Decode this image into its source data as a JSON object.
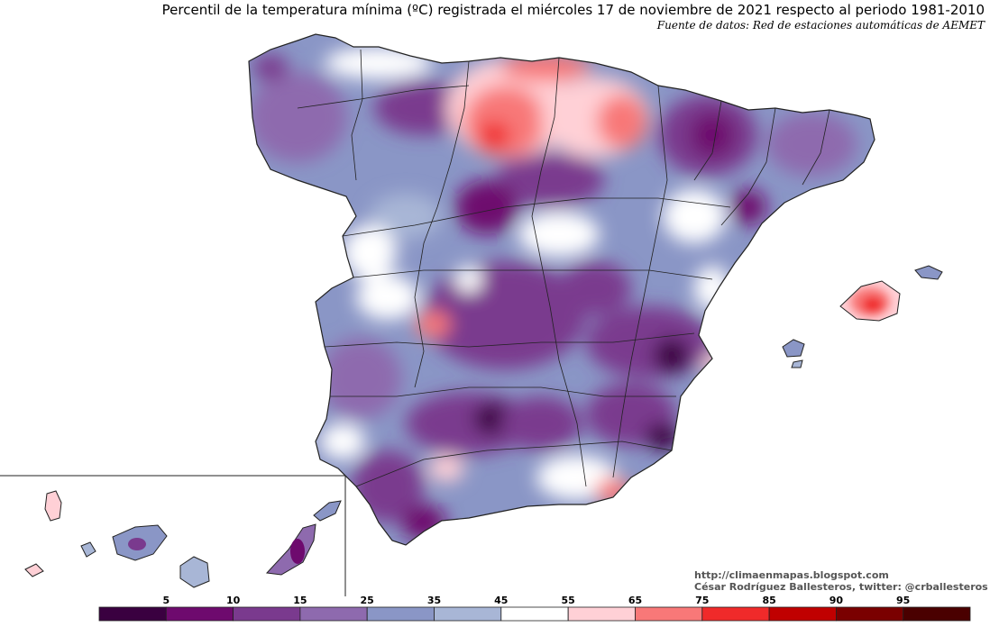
{
  "title": "Percentil de la temperatura mínima (ºC) registrada el miércoles 17 de noviembre de 2021 respecto al periodo 1981-2010",
  "source": "Fuente de datos: Red de estaciones automáticas de AEMET",
  "credits": {
    "blog": "http://climaenmapas.blogspot.com",
    "author": "César Rodríguez Ballesteros, twitter: @crballesteros"
  },
  "legend": {
    "labels": [
      "5",
      "10",
      "15",
      "25",
      "35",
      "45",
      "55",
      "65",
      "75",
      "85",
      "90",
      "95"
    ],
    "colors": [
      "#3a0040",
      "#6e0a6e",
      "#7a3a8e",
      "#8e6aae",
      "#8a96c6",
      "#a8b6d6",
      "#ffffff",
      "#ffd0d6",
      "#f87878",
      "#f02a2a",
      "#c00000",
      "#7a0000",
      "#4a0000"
    ]
  },
  "map_regions": [
    {
      "name": "region-galicia",
      "level": "low"
    },
    {
      "name": "region-north-ebro",
      "level": "high"
    },
    {
      "name": "region-aragon-cataluna",
      "level": "low"
    },
    {
      "name": "region-central-plateau",
      "level": "low"
    },
    {
      "name": "region-andalucia",
      "level": "low"
    },
    {
      "name": "region-valencia-coast",
      "level": "mid"
    },
    {
      "name": "region-baleares",
      "level": "high"
    },
    {
      "name": "region-canarias",
      "level": "low"
    }
  ]
}
